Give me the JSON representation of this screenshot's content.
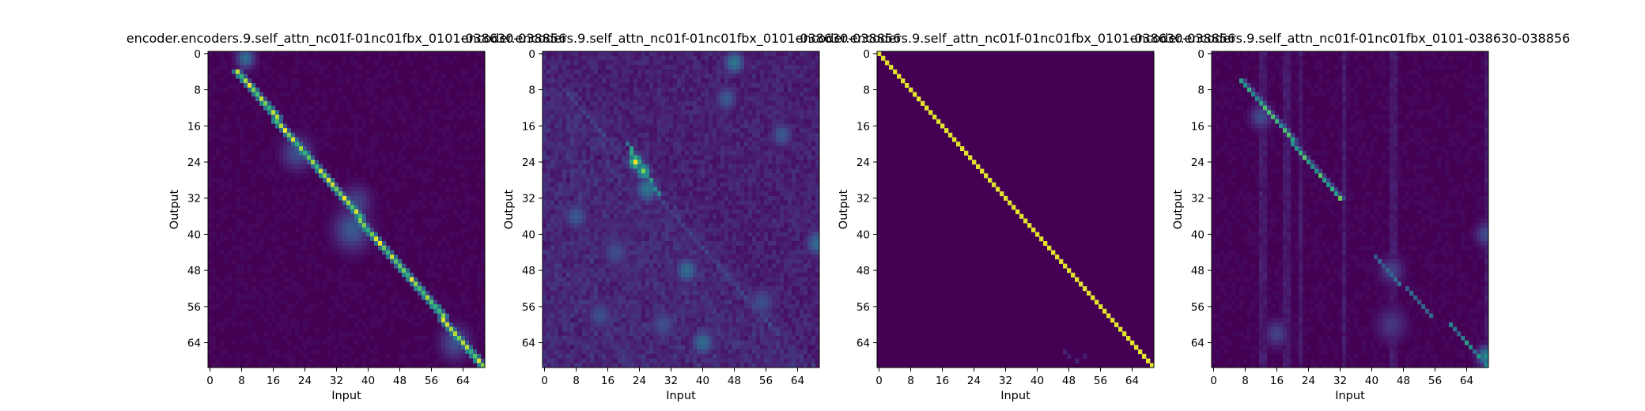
{
  "colors": {
    "background_cell": "#440154",
    "colormap": "viridis"
  },
  "chart_data": [
    {
      "type": "heatmap",
      "title": "encoder.encoders.9.self_attn_nc01f-01nc01fbx_0101-038630-038856",
      "xlabel": "Input",
      "ylabel": "Output",
      "x_ticks": [
        0,
        8,
        16,
        24,
        32,
        40,
        48,
        56,
        64
      ],
      "y_ticks": [
        0,
        8,
        16,
        24,
        32,
        40,
        48,
        56,
        64
      ],
      "grid_size": 70,
      "pattern": "diagonal from row 4 col 7 to row 69 col 69, slightly blurred",
      "blobs": [
        {
          "col": 9,
          "row": 1,
          "v": 0.45,
          "r": 1.6
        },
        {
          "col": 22,
          "row": 22,
          "v": 0.3,
          "r": 2.5
        },
        {
          "col": 36,
          "row": 39,
          "v": 0.35,
          "r": 3.0
        },
        {
          "col": 37,
          "row": 33,
          "v": 0.25,
          "r": 2.5
        },
        {
          "col": 62,
          "row": 64,
          "v": 0.3,
          "r": 2.5
        }
      ]
    },
    {
      "type": "heatmap",
      "title": "encoder.encoders.9.self_attn_nc01f-01nc01fbx_0101-038630-038856",
      "xlabel": "Input",
      "ylabel": "Output",
      "x_ticks": [
        0,
        8,
        16,
        24,
        32,
        40,
        48,
        56,
        64
      ],
      "y_ticks": [
        0,
        8,
        16,
        24,
        32,
        40,
        48,
        56,
        64
      ],
      "grid_size": 70,
      "pattern": "diffuse attention with bright spot near row 24-27 col 22-26",
      "blobs": [
        {
          "col": 23,
          "row": 24,
          "v": 1.0,
          "r": 1.2
        },
        {
          "col": 25,
          "row": 26,
          "v": 0.85,
          "r": 1.2
        },
        {
          "col": 26,
          "row": 30,
          "v": 0.5,
          "r": 2.0
        },
        {
          "col": 48,
          "row": 2,
          "v": 0.5,
          "r": 1.8
        },
        {
          "col": 46,
          "row": 10,
          "v": 0.35,
          "r": 2.0
        },
        {
          "col": 60,
          "row": 18,
          "v": 0.35,
          "r": 2.0
        },
        {
          "col": 69,
          "row": 42,
          "v": 0.45,
          "r": 2.0
        },
        {
          "col": 36,
          "row": 48,
          "v": 0.45,
          "r": 2.0
        },
        {
          "col": 8,
          "row": 36,
          "v": 0.35,
          "r": 2.2
        },
        {
          "col": 40,
          "row": 64,
          "v": 0.45,
          "r": 2.0
        },
        {
          "col": 14,
          "row": 58,
          "v": 0.3,
          "r": 2.5
        },
        {
          "col": 55,
          "row": 55,
          "v": 0.3,
          "r": 2.5
        },
        {
          "col": 30,
          "row": 60,
          "v": 0.3,
          "r": 2.5
        },
        {
          "col": 18,
          "row": 44,
          "v": 0.3,
          "r": 2.5
        }
      ]
    },
    {
      "type": "heatmap",
      "title": "encoder.encoders.9.self_attn_nc01f-01nc01fbx_0101-038630-038856",
      "xlabel": "Input",
      "ylabel": "Output",
      "x_ticks": [
        0,
        8,
        16,
        24,
        32,
        40,
        48,
        56,
        64
      ],
      "y_ticks": [
        0,
        8,
        16,
        24,
        32,
        40,
        48,
        56,
        64
      ],
      "grid_size": 70,
      "pattern": "sharp identity diagonal",
      "blobs": []
    },
    {
      "type": "heatmap",
      "title": "encoder.encoders.9.self_attn_nc01f-01nc01fbx_0101-038630-038856",
      "xlabel": "Input",
      "ylabel": "Output",
      "x_ticks": [
        0,
        8,
        16,
        24,
        32,
        40,
        48,
        56,
        64
      ],
      "y_ticks": [
        0,
        8,
        16,
        24,
        32,
        40,
        48,
        56,
        64
      ],
      "grid_size": 70,
      "pattern": "partial diagonal rows 6-32, faint segment rows 45-58, bright bottom right",
      "blobs": [
        {
          "col": 12,
          "row": 14,
          "v": 0.3,
          "r": 1.8
        },
        {
          "col": 45,
          "row": 48,
          "v": 0.25,
          "r": 2.0
        },
        {
          "col": 69,
          "row": 67,
          "v": 0.6,
          "r": 1.5
        },
        {
          "col": 69,
          "row": 40,
          "v": 0.3,
          "r": 1.8
        },
        {
          "col": 45,
          "row": 60,
          "v": 0.2,
          "r": 2.5
        },
        {
          "col": 16,
          "row": 62,
          "v": 0.25,
          "r": 2.0
        }
      ]
    }
  ]
}
